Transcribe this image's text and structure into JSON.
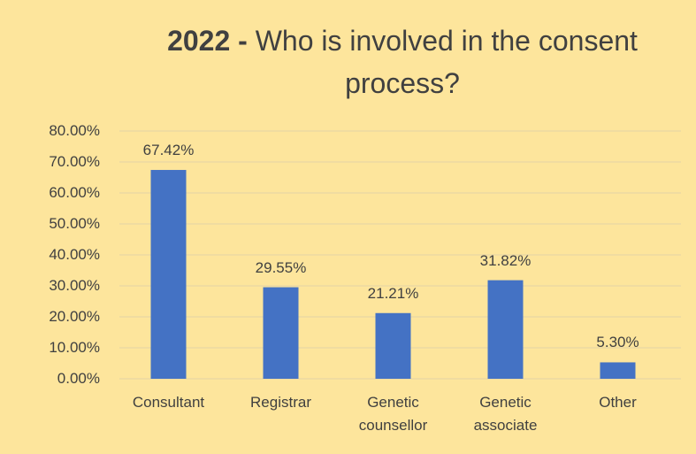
{
  "chart_data": {
    "type": "bar",
    "title_prefix": "2022 -",
    "title": "Who is involved in the consent process?",
    "categories": [
      "Consultant",
      "Registrar",
      "Genetic counsellor",
      "Genetic associate",
      "Other"
    ],
    "values": [
      67.42,
      29.55,
      21.21,
      31.82,
      5.3
    ],
    "value_labels": [
      "67.42%",
      "29.55%",
      "21.21%",
      "31.82%",
      "5.30%"
    ],
    "color": "#4472c4",
    "ylim": [
      0,
      80
    ],
    "yticks": [
      {
        "value": 0,
        "label": "0.00%"
      },
      {
        "value": 10,
        "label": "10.00%"
      },
      {
        "value": 20,
        "label": "20.00%"
      },
      {
        "value": 30,
        "label": "30.00%"
      },
      {
        "value": 40,
        "label": "40.00%"
      },
      {
        "value": 50,
        "label": "50.00%"
      },
      {
        "value": 60,
        "label": "60.00%"
      },
      {
        "value": 70,
        "label": "70.00%"
      },
      {
        "value": 80,
        "label": "80.00%"
      }
    ],
    "grid": true
  }
}
